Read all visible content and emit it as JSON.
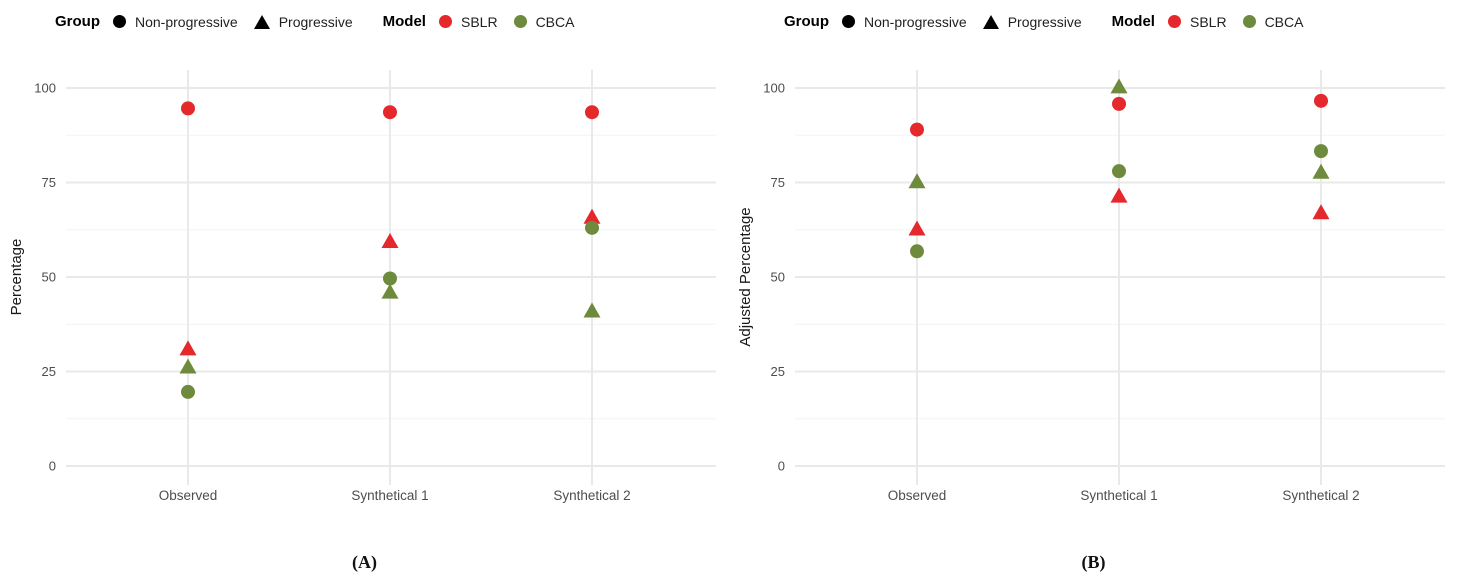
{
  "legend": {
    "group_title": "Group",
    "model_title": "Model",
    "group_items": [
      {
        "label": "Non-progressive",
        "marker": "circle",
        "color": "#000000"
      },
      {
        "label": "Progressive",
        "marker": "triangle",
        "color": "#000000"
      }
    ],
    "model_items": [
      {
        "label": "SBLR",
        "marker": "circle",
        "color": "#E4282C"
      },
      {
        "label": "CBCA",
        "marker": "circle",
        "color": "#6E8B3D"
      }
    ]
  },
  "colors": {
    "sblr_red": "#E4282C",
    "cbca_green": "#6E8B3D",
    "grid_major": "#E9E9E9",
    "grid_minor": "#F3F3F3",
    "tick_text": "#4d4d4d",
    "axis_title_text": "#1a1a1a",
    "background": "#ffffff"
  },
  "chart_data": [
    {
      "panel": "A",
      "type": "scatter",
      "caption": "(A)",
      "xlabel": "",
      "ylabel": "Percentage",
      "categories": [
        "Observed",
        "Synthetical 1",
        "Synthetical 2"
      ],
      "yticks": [
        0,
        25,
        50,
        75,
        100
      ],
      "ylim": [
        0,
        105
      ],
      "grid": "horizontal major+minor, vertical major per category",
      "legend_position": "top",
      "series": [
        {
          "name": "SBLR / Progressive",
          "model": "SBLR",
          "group": "Progressive",
          "marker": "triangle",
          "color": "#E4282C",
          "values": [
            31.0,
            59.4,
            65.8
          ]
        },
        {
          "name": "SBLR / Non-progressive",
          "model": "SBLR",
          "group": "Non-progressive",
          "marker": "circle",
          "color": "#E4282C",
          "values": [
            94.6,
            93.6,
            93.6
          ]
        },
        {
          "name": "CBCA / Progressive",
          "model": "CBCA",
          "group": "Progressive",
          "marker": "triangle",
          "color": "#6E8B3D",
          "values": [
            26.2,
            46.0,
            41.0
          ]
        },
        {
          "name": "CBCA / Non-progressive",
          "model": "CBCA",
          "group": "Non-progressive",
          "marker": "circle",
          "color": "#6E8B3D",
          "values": [
            19.6,
            49.6,
            63.0
          ]
        }
      ]
    },
    {
      "panel": "B",
      "type": "scatter",
      "caption": "(B)",
      "xlabel": "",
      "ylabel": "Adjusted Percentage",
      "categories": [
        "Observed",
        "Synthetical 1",
        "Synthetical 2"
      ],
      "yticks": [
        0,
        25,
        50,
        75,
        100
      ],
      "ylim": [
        0,
        105
      ],
      "grid": "horizontal major+minor, vertical major per category",
      "legend_position": "top",
      "series": [
        {
          "name": "SBLR / Progressive",
          "model": "SBLR",
          "group": "Progressive",
          "marker": "triangle",
          "color": "#E4282C",
          "values": [
            62.7,
            71.4,
            67.0
          ]
        },
        {
          "name": "SBLR / Non-progressive",
          "model": "SBLR",
          "group": "Non-progressive",
          "marker": "circle",
          "color": "#E4282C",
          "values": [
            89.0,
            95.8,
            96.6
          ]
        },
        {
          "name": "CBCA / Progressive",
          "model": "CBCA",
          "group": "Progressive",
          "marker": "triangle",
          "color": "#6E8B3D",
          "values": [
            75.2,
            100.3,
            77.7
          ]
        },
        {
          "name": "CBCA / Non-progressive",
          "model": "CBCA",
          "group": "Non-progressive",
          "marker": "circle",
          "color": "#6E8B3D",
          "values": [
            56.8,
            78.0,
            83.3
          ]
        }
      ]
    }
  ]
}
